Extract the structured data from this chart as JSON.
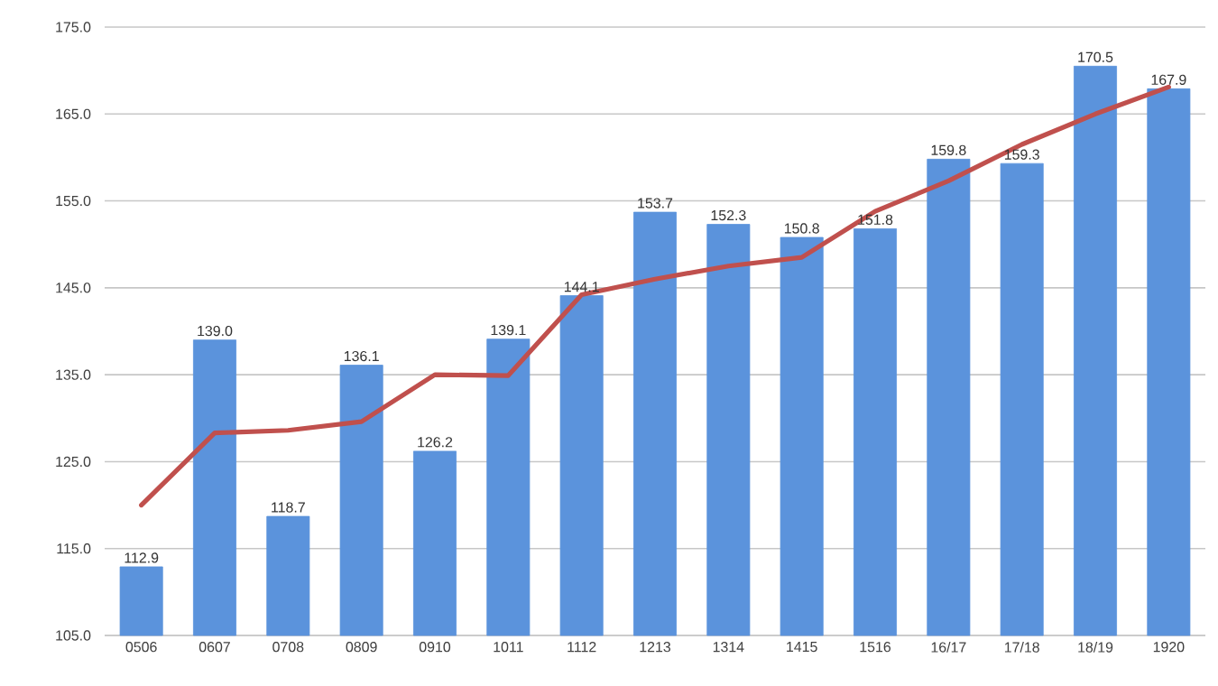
{
  "chart_data": {
    "type": "bar",
    "categories": [
      "0506",
      "0607",
      "0708",
      "0809",
      "0910",
      "1011",
      "1112",
      "1213",
      "1314",
      "1415",
      "1516",
      "16/17",
      "17/18",
      "18/19",
      "1920"
    ],
    "series": [
      {
        "color": "#5b93dc",
        "values": [
          112.9,
          139.0,
          118.7,
          136.1,
          126.2,
          139.1,
          144.1,
          153.7,
          152.3,
          150.8,
          151.8,
          159.8,
          159.3,
          170.5,
          167.9
        ],
        "value_labels": [
          "112.9",
          "139.0",
          "118.7",
          "136.1",
          "126.2",
          "139.1",
          "144.1",
          "153.7",
          "152.3",
          "150.8",
          "151.8",
          "159.8",
          "159.3",
          "170.5",
          "167.9"
        ]
      },
      {
        "type": "line",
        "color": "#c0504d",
        "values": [
          120.0,
          128.3,
          128.6,
          129.6,
          135.0,
          134.9,
          144.2,
          146.0,
          147.5,
          148.5,
          153.8,
          157.3,
          161.5,
          165.0,
          168.1
        ]
      }
    ],
    "ylim": [
      105,
      175
    ],
    "yticks": [
      {
        "value": 105,
        "label": "105.0"
      },
      {
        "value": 115,
        "label": "115.0"
      },
      {
        "value": 125,
        "label": "125.0"
      },
      {
        "value": 135,
        "label": "135.0"
      },
      {
        "value": 145,
        "label": "145.0"
      },
      {
        "value": 155,
        "label": "155.0"
      },
      {
        "value": 165,
        "label": "165.0"
      },
      {
        "value": 175,
        "label": "175.0"
      }
    ],
    "grid": "y"
  }
}
